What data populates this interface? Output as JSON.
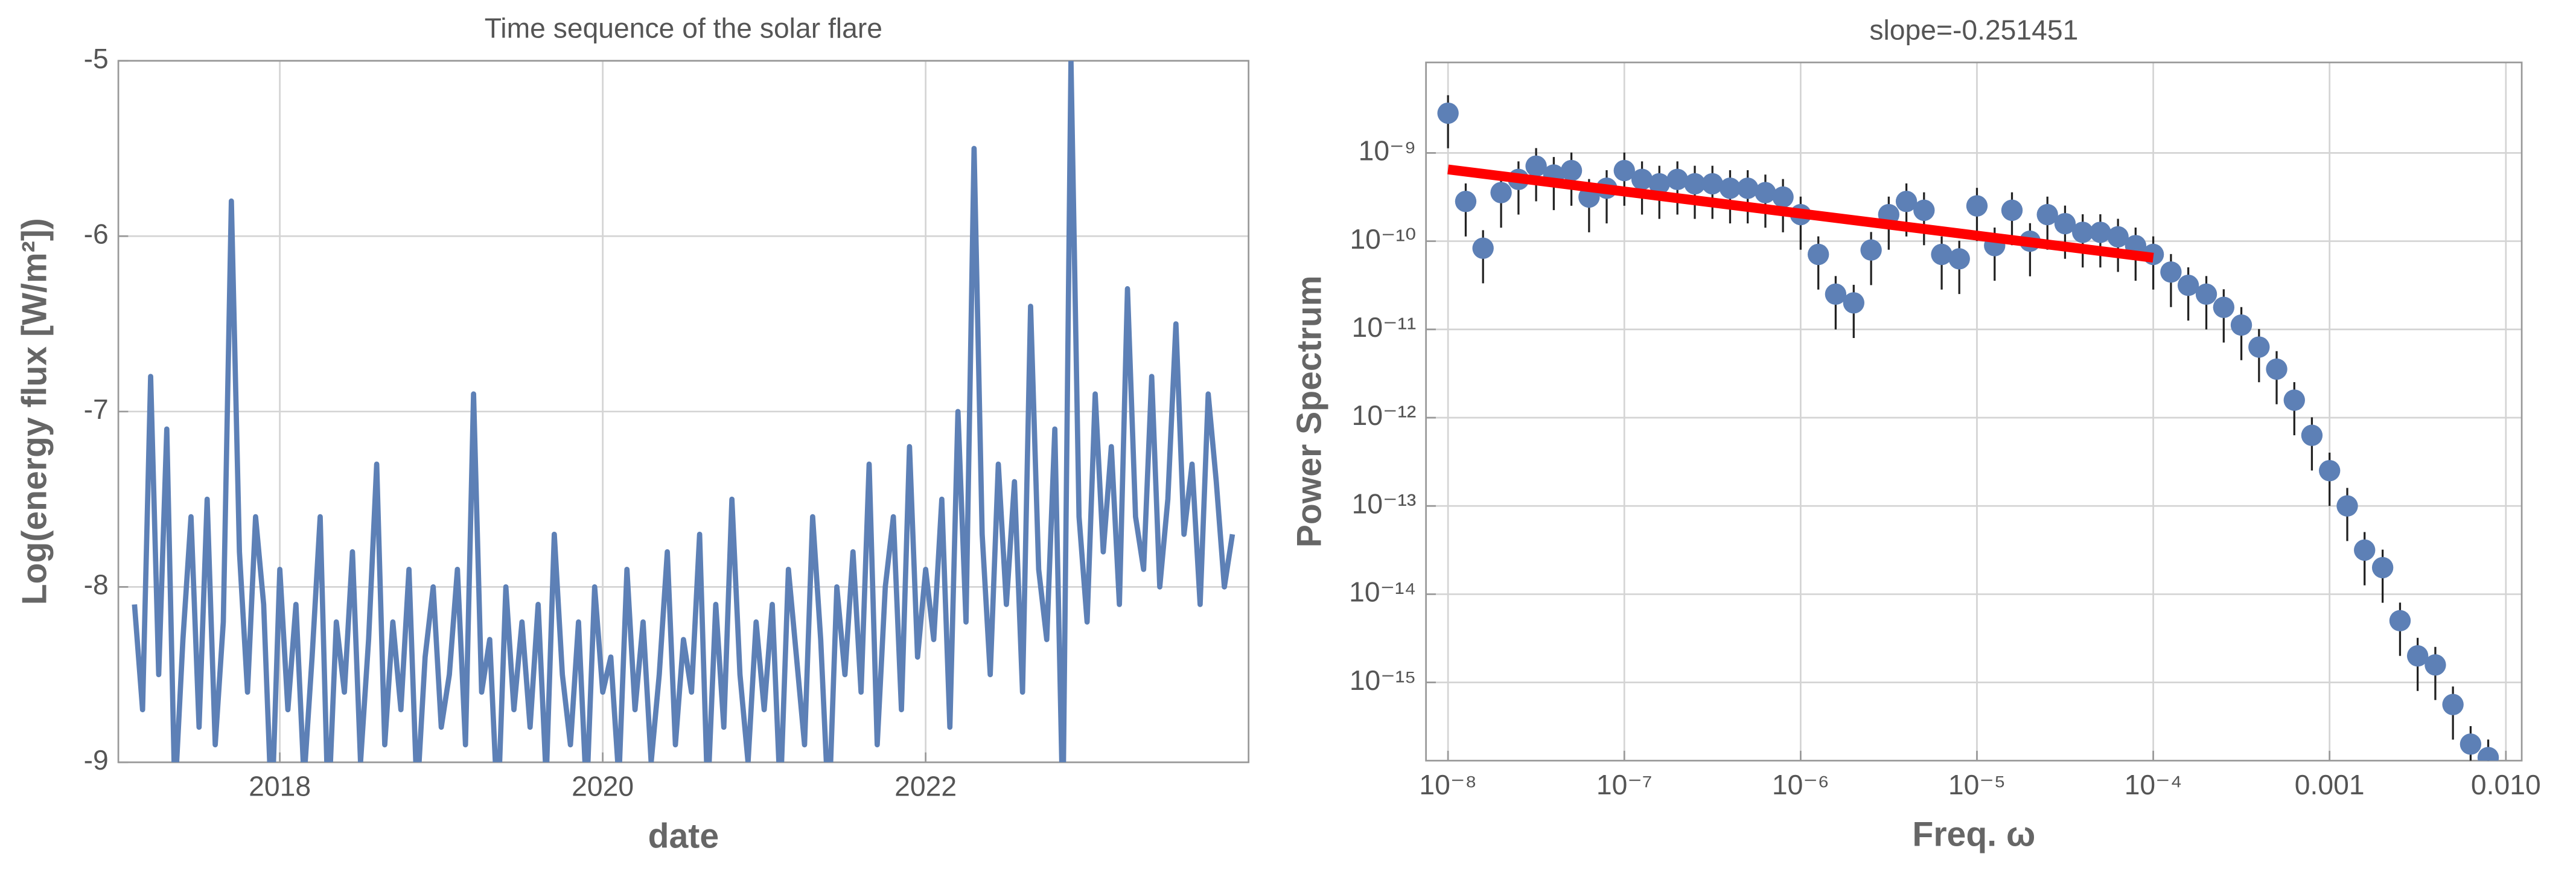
{
  "chart_data": [
    {
      "type": "line",
      "title": "Time sequence of the solar flare",
      "xlabel": "date",
      "ylabel": "Log(energy flux [W/m²])",
      "color": "#5d80b6",
      "grid": true,
      "xlim": [
        2017.0,
        2024.0
      ],
      "ylim": [
        -9,
        -5
      ],
      "xticks": [
        2018,
        2020,
        2022
      ],
      "yticks": [
        -9,
        -8,
        -7,
        -6,
        -5
      ],
      "x": [
        2017.1,
        2017.15,
        2017.2,
        2017.25,
        2017.3,
        2017.35,
        2017.4,
        2017.45,
        2017.5,
        2017.55,
        2017.6,
        2017.65,
        2017.7,
        2017.75,
        2017.8,
        2017.85,
        2017.9,
        2017.95,
        2018,
        2018.05,
        2018.1,
        2018.15,
        2018.2,
        2018.25,
        2018.3,
        2018.35,
        2018.4,
        2018.45,
        2018.5,
        2018.55,
        2018.6,
        2018.65,
        2018.7,
        2018.75,
        2018.8,
        2018.85,
        2018.9,
        2018.95,
        2019,
        2019.05,
        2019.1,
        2019.15,
        2019.2,
        2019.25,
        2019.3,
        2019.35,
        2019.4,
        2019.45,
        2019.5,
        2019.55,
        2019.6,
        2019.65,
        2019.7,
        2019.75,
        2019.8,
        2019.85,
        2019.9,
        2019.95,
        2020,
        2020.05,
        2020.1,
        2020.15,
        2020.2,
        2020.25,
        2020.3,
        2020.35,
        2020.4,
        2020.45,
        2020.5,
        2020.55,
        2020.6,
        2020.65,
        2020.7,
        2020.75,
        2020.8,
        2020.85,
        2020.9,
        2020.95,
        2021,
        2021.05,
        2021.1,
        2021.15,
        2021.2,
        2021.25,
        2021.3,
        2021.35,
        2021.4,
        2021.45,
        2021.5,
        2021.55,
        2021.6,
        2021.65,
        2021.7,
        2021.75,
        2021.8,
        2021.85,
        2021.9,
        2021.95,
        2022,
        2022.05,
        2022.1,
        2022.15,
        2022.2,
        2022.25,
        2022.3,
        2022.35,
        2022.4,
        2022.45,
        2022.5,
        2022.55,
        2022.6,
        2022.65,
        2022.7,
        2022.75,
        2022.8,
        2022.85,
        2022.9,
        2022.95,
        2023,
        2023.05,
        2023.1,
        2023.15,
        2023.2,
        2023.25,
        2023.3,
        2023.35,
        2023.4,
        2023.45,
        2023.5,
        2023.55,
        2023.6,
        2023.65,
        2023.7,
        2023.75,
        2023.8,
        2023.85,
        2023.9
      ],
      "values": [
        -8.1,
        -8.7,
        -6.8,
        -8.5,
        -7.1,
        -9.2,
        -8.3,
        -7.6,
        -8.8,
        -7.5,
        -8.9,
        -8.2,
        -5.8,
        -7.8,
        -8.6,
        -7.6,
        -8.1,
        -9.3,
        -7.9,
        -8.7,
        -8.1,
        -9.1,
        -8.4,
        -7.6,
        -9.3,
        -8.2,
        -8.6,
        -7.8,
        -9.0,
        -8.3,
        -7.3,
        -8.9,
        -8.2,
        -8.7,
        -7.9,
        -9.2,
        -8.4,
        -8.0,
        -8.8,
        -8.5,
        -7.9,
        -8.9,
        -6.9,
        -8.6,
        -8.3,
        -9.3,
        -8.0,
        -8.7,
        -8.2,
        -8.8,
        -8.1,
        -9.1,
        -7.7,
        -8.5,
        -8.9,
        -8.2,
        -9.2,
        -8.0,
        -8.6,
        -8.4,
        -9.1,
        -7.9,
        -8.7,
        -8.2,
        -9.0,
        -8.5,
        -7.8,
        -8.9,
        -8.3,
        -8.6,
        -7.7,
        -9.2,
        -8.1,
        -8.8,
        -7.5,
        -8.5,
        -9.0,
        -8.2,
        -8.7,
        -8.1,
        -9.2,
        -7.9,
        -8.4,
        -8.9,
        -7.6,
        -8.3,
        -9.3,
        -8.0,
        -8.5,
        -7.8,
        -8.6,
        -7.3,
        -8.9,
        -8.0,
        -7.6,
        -8.7,
        -7.2,
        -8.4,
        -7.9,
        -8.3,
        -7.5,
        -8.8,
        -7.0,
        -8.2,
        -5.5,
        -7.7,
        -8.5,
        -7.3,
        -8.1,
        -7.4,
        -8.6,
        -6.4,
        -7.9,
        -8.3,
        -7.1,
        -9.3,
        -5.0,
        -7.6,
        -8.2,
        -6.9,
        -7.8,
        -7.2,
        -8.1,
        -6.3,
        -7.6,
        -7.9,
        -6.8,
        -8.0,
        -7.5,
        -6.5,
        -7.7,
        -7.3,
        -8.1,
        -6.9,
        -7.4,
        -8.0,
        -7.7
      ]
    },
    {
      "type": "scatter",
      "title": "slope=-0.251451",
      "xlabel": "Freq. ω",
      "ylabel": "Power Spectrum",
      "log": true,
      "grid": true,
      "xlim": [
        7.5e-09,
        0.0123
      ],
      "ylim": [
        1.3e-16,
        1.06e-08
      ],
      "xticks": [
        {
          "value": 1e-08,
          "label": "10⁻⁸"
        },
        {
          "value": 1e-07,
          "label": "10⁻⁷"
        },
        {
          "value": 1e-06,
          "label": "10⁻⁶"
        },
        {
          "value": 1e-05,
          "label": "10⁻⁵"
        },
        {
          "value": 0.0001,
          "label": "10⁻⁴"
        },
        0.001,
        {
          "value": 0.01,
          "label": "0.010"
        }
      ],
      "yticks": [
        {
          "value": 1e-15,
          "label": "10⁻¹⁵"
        },
        {
          "value": 1e-14,
          "label": "10⁻¹⁴"
        },
        {
          "value": 1e-13,
          "label": "10⁻¹³"
        },
        {
          "value": 1e-12,
          "label": "10⁻¹²"
        },
        {
          "value": 1e-11,
          "label": "10⁻¹¹"
        },
        {
          "value": 1e-10,
          "label": "10⁻¹⁰"
        },
        {
          "value": 1e-09,
          "label": "10⁻⁹"
        }
      ],
      "series": [
        {
          "kind": "points",
          "color": "#5d80b6",
          "x": [
            1e-08,
            1.26e-08,
            1.58e-08,
            2e-08,
            2.51e-08,
            3.16e-08,
            3.98e-08,
            5.01e-08,
            6.31e-08,
            7.94e-08,
            1e-07,
            1.26e-07,
            1.58e-07,
            2e-07,
            2.51e-07,
            3.16e-07,
            3.98e-07,
            5.01e-07,
            6.31e-07,
            7.94e-07,
            1e-06,
            1.26e-06,
            1.58e-06,
            2e-06,
            2.51e-06,
            3.16e-06,
            3.98e-06,
            5.01e-06,
            6.31e-06,
            7.94e-06,
            1e-05,
            1.26e-05,
            1.58e-05,
            2e-05,
            2.51e-05,
            3.16e-05,
            3.98e-05,
            5.01e-05,
            6.31e-05,
            7.94e-05,
            0.0001,
            0.000126,
            0.000158,
            0.0002,
            0.000251,
            0.000316,
            0.000398,
            0.000501,
            0.000631,
            0.000794,
            0.001,
            0.00126,
            0.00158,
            0.002,
            0.00251,
            0.00316,
            0.00398,
            0.00501,
            0.00631,
            0.00794
          ],
          "values": [
            2.82e-09,
            2.82e-10,
            8.32e-11,
            3.55e-10,
            5.01e-10,
            7.08e-10,
            5.62e-10,
            6.31e-10,
            3.16e-10,
            3.98e-10,
            6.31e-10,
            5.01e-10,
            4.47e-10,
            5.01e-10,
            4.47e-10,
            4.47e-10,
            3.98e-10,
            3.98e-10,
            3.55e-10,
            3.16e-10,
            2e-10,
            7.08e-11,
            2.51e-11,
            2e-11,
            7.94e-11,
            2e-10,
            2.82e-10,
            2.24e-10,
            7.08e-11,
            6.31e-11,
            2.51e-10,
            8.91e-11,
            2.24e-10,
            1e-10,
            2e-10,
            1.58e-10,
            1.26e-10,
            1.26e-10,
            1.12e-10,
            8.91e-11,
            7.08e-11,
            4.47e-11,
            3.16e-11,
            2.51e-11,
            1.78e-11,
            1.12e-11,
            6.31e-12,
            3.55e-12,
            1.58e-12,
            6.31e-13,
            2.51e-13,
            1e-13,
            3.16e-14,
            2e-14,
            5.01e-15,
            2e-15,
            1.58e-15,
            5.62e-16,
            2e-16,
            1.41e-16
          ],
          "errors": [
            1.69e-09,
            1.69e-10,
            4.99e-11,
            2.13e-10,
            3.01e-10,
            4.25e-10,
            3.37e-10,
            3.79e-10,
            1.9e-10,
            2.39e-10,
            3.79e-10,
            3.01e-10,
            2.68e-10,
            3.01e-10,
            2.68e-10,
            2.68e-10,
            2.39e-10,
            2.39e-10,
            2.13e-10,
            1.9e-10,
            1.2e-10,
            4.25e-11,
            1.51e-11,
            1.2e-11,
            4.76e-11,
            1.2e-10,
            1.69e-10,
            1.34e-10,
            4.25e-11,
            3.79e-11,
            1.51e-10,
            5.35e-11,
            1.34e-10,
            6e-11,
            1.2e-10,
            9.48e-11,
            7.56e-11,
            7.56e-11,
            6.72e-11,
            5.35e-11,
            4.25e-11,
            2.68e-11,
            1.9e-11,
            1.51e-11,
            1.07e-11,
            6.72e-12,
            3.79e-12,
            2.13e-12,
            9.48e-13,
            3.79e-13,
            1.51e-13,
            6e-14,
            1.9e-14,
            1.2e-14,
            3.01e-15,
            1.2e-15,
            9.48e-16,
            3.37e-16,
            1.2e-16,
            8.46e-17
          ]
        },
        {
          "kind": "line",
          "color": "#ff0000",
          "x": [
            1e-08,
            0.0001
          ],
          "values": [
            6.5e-10,
            6.5e-11
          ]
        }
      ]
    }
  ]
}
